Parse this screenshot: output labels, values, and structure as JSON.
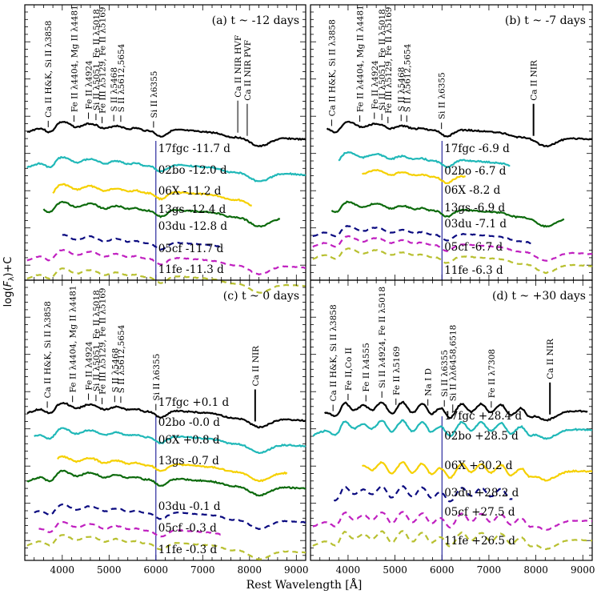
{
  "chart_data": {
    "type": "line",
    "figure_title": "",
    "xlabel": "Rest Wavelength [Å]",
    "ylabel": "log(F_λ)+C",
    "xlim": [
      3200,
      9200
    ],
    "xticks": [
      4000,
      5000,
      6000,
      7000,
      8000,
      9000
    ],
    "x_minor_step": 200,
    "grid": false,
    "reference_lines": [
      {
        "x": 6000,
        "color": "#00008b",
        "label": "Si II velocity reference"
      }
    ],
    "styles": {
      "17fgc": {
        "color": "#000000",
        "dash": "solid"
      },
      "02bo": {
        "color": "#20b8b8",
        "dash": "solid"
      },
      "06X": {
        "color": "#f5d000",
        "dash": "solid"
      },
      "13gs": {
        "color": "#0c6a0c",
        "dash": "solid"
      },
      "03du": {
        "color": "#0a0a80",
        "dash": "dashed"
      },
      "05cf": {
        "color": "#c020c0",
        "dash": "dashed"
      },
      "11fe": {
        "color": "#b8c030",
        "dash": "dashed"
      }
    },
    "panels": [
      {
        "id": "a",
        "title": "(a) t ~ -12 days",
        "line_ids": [
          {
            "label": "Ca II H&K, Si II λ3858",
            "x": 3700
          },
          {
            "label": "Fe II λ4404, Mg II λ4481",
            "x": 4250
          },
          {
            "label": "Fe II λ4924",
            "x": 4560
          },
          {
            "label": "Si II λ5051, Fe II λ5018",
            "x": 4720
          },
          {
            "label": "Fe III λ5129, Fe II λ5169",
            "x": 4850
          },
          {
            "label": "S II λ5468",
            "x": 5100
          },
          {
            "label": "S II λ5612,5654",
            "x": 5250
          },
          {
            "label": "Si II λ6355",
            "x": 5950
          },
          {
            "label": "Ca II NIR HVF",
            "x": 7750
          },
          {
            "label": "Ca II NIR PVF",
            "x": 7950
          }
        ],
        "spectra": [
          {
            "sn": "17fgc",
            "label": "17fgc -11.7 d",
            "x_range": [
              3250,
              9200
            ]
          },
          {
            "sn": "02bo",
            "label": "02bo -12.0 d",
            "x_range": [
              3250,
              9200
            ]
          },
          {
            "sn": "06X",
            "label": "06X -11.2 d",
            "x_range": [
              3800,
              8050
            ]
          },
          {
            "sn": "13gs",
            "label": "13gs -12.4 d",
            "x_range": [
              3600,
              8650
            ]
          },
          {
            "sn": "03du",
            "label": "03du -12.8 d",
            "x_range": [
              4000,
              7450
            ]
          },
          {
            "sn": "05cf",
            "label": "05cf -11.7 d",
            "x_range": [
              3250,
              9200
            ]
          },
          {
            "sn": "11fe",
            "label": "11fe -11.3 d",
            "x_range": [
              3250,
              9200
            ]
          }
        ]
      },
      {
        "id": "b",
        "title": "(b) t ~ -7 days",
        "line_ids": [
          {
            "label": "Ca II H&K, Si II λ3858",
            "x": 3650
          },
          {
            "label": "Fe II λ4404, Mg II λ4481",
            "x": 4250
          },
          {
            "label": "Fe II λ4924",
            "x": 4560
          },
          {
            "label": "Si II λ5051, Fe II λ5018",
            "x": 4720
          },
          {
            "label": "Fe III λ5129, Fe II λ5169",
            "x": 4850
          },
          {
            "label": "S II λ5468",
            "x": 5130
          },
          {
            "label": "S II λ5612,5654",
            "x": 5250
          },
          {
            "label": "Si II λ6355",
            "x": 5990
          },
          {
            "label": "Ca II NIR",
            "x": 7950
          }
        ],
        "spectra": [
          {
            "sn": "17fgc",
            "label": "17fgc -6.9 d",
            "x_range": [
              3550,
              9200
            ]
          },
          {
            "sn": "02bo",
            "label": "02bo -6.7 d",
            "x_range": [
              3800,
              7450
            ]
          },
          {
            "sn": "06X",
            "label": "06X -8.2 d",
            "x_range": [
              4300,
              6500
            ]
          },
          {
            "sn": "13gs",
            "label": "13gs -6.9 d",
            "x_range": [
              3650,
              8600
            ]
          },
          {
            "sn": "03du",
            "label": "03du -7.1 d",
            "x_range": [
              3250,
              7950
            ]
          },
          {
            "sn": "05cf",
            "label": "05cf -6.7 d",
            "x_range": [
              3250,
              9200
            ]
          },
          {
            "sn": "11fe",
            "label": "11fe -6.3 d",
            "x_range": [
              3250,
              9200
            ]
          }
        ]
      },
      {
        "id": "c",
        "title": "(c) t ~ 0 days",
        "line_ids": [
          {
            "label": "Ca II H&K, Si II λ3858",
            "x": 3680
          },
          {
            "label": "Fe II λ4404, Mg II λ4481",
            "x": 4220
          },
          {
            "label": "Fe II λ4924",
            "x": 4560
          },
          {
            "label": "Si II λ5051, Fe II λ5018",
            "x": 4720
          },
          {
            "label": "Fe III λ5129, Fe II λ5169",
            "x": 4850
          },
          {
            "label": "S II λ5468",
            "x": 5120
          },
          {
            "label": "S II λ5612,5654",
            "x": 5250
          },
          {
            "label": "Si II λ6355",
            "x": 6000
          },
          {
            "label": "Ca II NIR",
            "x": 8120
          }
        ],
        "spectra": [
          {
            "sn": "17fgc",
            "label": "17fgc +0.1 d",
            "x_range": [
              3250,
              9200
            ]
          },
          {
            "sn": "02bo",
            "label": "02bo -0.0 d",
            "x_range": [
              3400,
              9200
            ]
          },
          {
            "sn": "06X",
            "label": "06X +0.8 d",
            "x_range": [
              3900,
              8800
            ]
          },
          {
            "sn": "13gs",
            "label": "13gs -0.7 d",
            "x_range": [
              3250,
              9200
            ]
          },
          {
            "sn": "03du",
            "label": "03du -0.1 d",
            "x_range": [
              3400,
              9200
            ]
          },
          {
            "sn": "05cf",
            "label": "05cf -0.3 d",
            "x_range": [
              3500,
              7400
            ]
          },
          {
            "sn": "11fe",
            "label": "11fe -0.3 d",
            "x_range": [
              3250,
              9200
            ]
          }
        ]
      },
      {
        "id": "d",
        "title": "(d) t ~ +30 days",
        "line_ids": [
          {
            "label": "Ca II H&K, Si II λ3858",
            "x": 3680
          },
          {
            "label": "Fe II,Co II",
            "x": 4000
          },
          {
            "label": "Fe II λ4555",
            "x": 4380
          },
          {
            "label": "Si II λ4924, Fe II λ5018",
            "x": 4720
          },
          {
            "label": "Fe II λ5169",
            "x": 5020
          },
          {
            "label": "Na I D",
            "x": 5700
          },
          {
            "label": "Si II λ6355",
            "x": 6050
          },
          {
            "label": "Si II λλ6458,6518",
            "x": 6230
          },
          {
            "label": "Fe II λ7308",
            "x": 7050
          },
          {
            "label": "Ca II NIR",
            "x": 8300
          }
        ],
        "spectra": [
          {
            "sn": "17fgc",
            "label": "17fgc +28.4 d",
            "x_range": [
              3500,
              9100
            ]
          },
          {
            "sn": "02bo",
            "label": "02bo +28.5 d",
            "x_range": [
              3250,
              9200
            ]
          },
          {
            "sn": "06X",
            "label": "06X +30.2 d",
            "x_range": [
              4300,
              9200
            ]
          },
          {
            "sn": "03du",
            "label": "03du +28.2 d",
            "x_range": [
              3700,
              7500
            ]
          },
          {
            "sn": "05cf",
            "label": "05cf +27.5 d",
            "x_range": [
              3250,
              9200
            ]
          },
          {
            "sn": "11fe",
            "label": "11fe +26.5 d",
            "x_range": [
              3250,
              9200
            ]
          }
        ]
      }
    ]
  }
}
